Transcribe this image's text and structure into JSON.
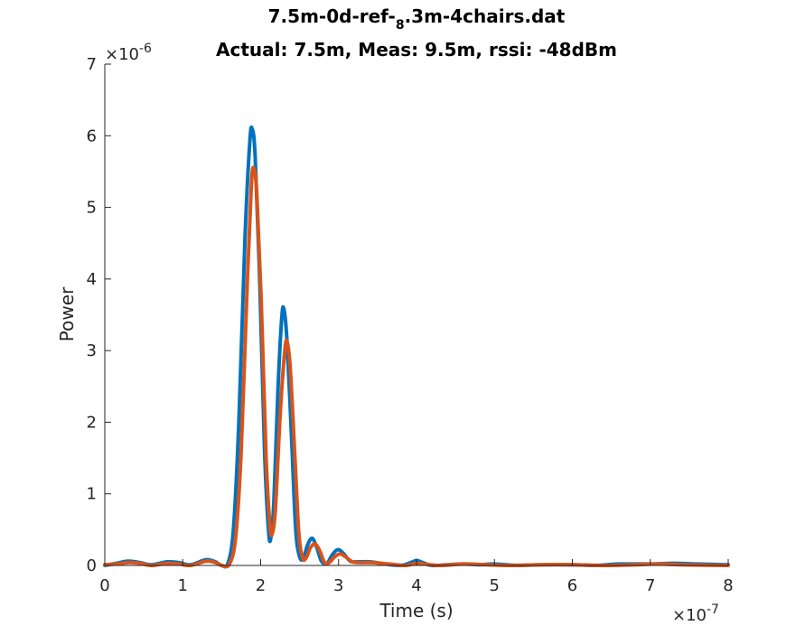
{
  "chart_data": {
    "type": "line",
    "title_parts": [
      "7.5m-0d-ref-",
      "8",
      ".3m-4chairs.dat"
    ],
    "subtitle": "Actual: 7.5m, Meas: 9.5m, rssi: -48dBm",
    "xlabel": "Time (s)",
    "ylabel": "Power",
    "x_exponent_label": "×10",
    "x_exponent": "-7",
    "y_exponent_label": "×10",
    "y_exponent": "-6",
    "xlim": [
      0,
      8
    ],
    "ylim": [
      0,
      7
    ],
    "x_ticks": [
      "0",
      "1",
      "2",
      "3",
      "4",
      "5",
      "6",
      "7",
      "8"
    ],
    "y_ticks": [
      "0",
      "1",
      "2",
      "3",
      "4",
      "5",
      "6",
      "7"
    ],
    "grid": false,
    "series": [
      {
        "color": "#0072BD",
        "points": [
          [
            0,
            0.0
          ],
          [
            0.15,
            0.03
          ],
          [
            0.3,
            0.06
          ],
          [
            0.45,
            0.04
          ],
          [
            0.6,
            0.01
          ],
          [
            0.8,
            0.05
          ],
          [
            0.95,
            0.04
          ],
          [
            1.1,
            0.01
          ],
          [
            1.3,
            0.08
          ],
          [
            1.42,
            0.05
          ],
          [
            1.5,
            0.0
          ],
          [
            1.58,
            0.03
          ],
          [
            1.65,
            0.5
          ],
          [
            1.72,
            2.0
          ],
          [
            1.8,
            4.6
          ],
          [
            1.86,
            5.9
          ],
          [
            1.89,
            6.1
          ],
          [
            1.93,
            5.7
          ],
          [
            1.99,
            3.9
          ],
          [
            2.05,
            1.6
          ],
          [
            2.1,
            0.5
          ],
          [
            2.13,
            0.38
          ],
          [
            2.17,
            0.9
          ],
          [
            2.22,
            2.4
          ],
          [
            2.27,
            3.45
          ],
          [
            2.3,
            3.57
          ],
          [
            2.34,
            3.1
          ],
          [
            2.4,
            1.7
          ],
          [
            2.45,
            0.5
          ],
          [
            2.5,
            0.12
          ],
          [
            2.55,
            0.1
          ],
          [
            2.6,
            0.28
          ],
          [
            2.66,
            0.38
          ],
          [
            2.72,
            0.25
          ],
          [
            2.78,
            0.06
          ],
          [
            2.85,
            0.03
          ],
          [
            2.92,
            0.15
          ],
          [
            2.99,
            0.22
          ],
          [
            3.06,
            0.17
          ],
          [
            3.15,
            0.06
          ],
          [
            3.25,
            0.05
          ],
          [
            3.4,
            0.05
          ],
          [
            3.6,
            0.02
          ],
          [
            3.8,
            0.0
          ],
          [
            3.95,
            0.05
          ],
          [
            4.0,
            0.07
          ],
          [
            4.08,
            0.04
          ],
          [
            4.2,
            0.0
          ],
          [
            4.4,
            0.01
          ],
          [
            4.6,
            0.02
          ],
          [
            4.8,
            0.01
          ],
          [
            5.0,
            0.02
          ],
          [
            5.3,
            0.0
          ],
          [
            5.6,
            0.01
          ],
          [
            6.0,
            0.01
          ],
          [
            6.3,
            0.0
          ],
          [
            6.6,
            0.02
          ],
          [
            7.0,
            0.02
          ],
          [
            7.3,
            0.03
          ],
          [
            7.6,
            0.02
          ],
          [
            8.0,
            0.01
          ]
        ]
      },
      {
        "color": "#D95319",
        "points": [
          [
            0,
            0.01
          ],
          [
            0.15,
            0.02
          ],
          [
            0.3,
            0.04
          ],
          [
            0.45,
            0.03
          ],
          [
            0.6,
            0.0
          ],
          [
            0.8,
            0.03
          ],
          [
            0.95,
            0.02
          ],
          [
            1.1,
            0.0
          ],
          [
            1.3,
            0.06
          ],
          [
            1.42,
            0.04
          ],
          [
            1.5,
            0.0
          ],
          [
            1.6,
            0.02
          ],
          [
            1.68,
            0.4
          ],
          [
            1.75,
            1.6
          ],
          [
            1.83,
            4.0
          ],
          [
            1.88,
            5.3
          ],
          [
            1.91,
            5.55
          ],
          [
            1.95,
            5.2
          ],
          [
            2.01,
            3.6
          ],
          [
            2.07,
            1.5
          ],
          [
            2.12,
            0.55
          ],
          [
            2.15,
            0.45
          ],
          [
            2.19,
            0.8
          ],
          [
            2.25,
            2.1
          ],
          [
            2.31,
            3.0
          ],
          [
            2.34,
            3.12
          ],
          [
            2.38,
            2.75
          ],
          [
            2.44,
            1.5
          ],
          [
            2.49,
            0.45
          ],
          [
            2.54,
            0.1
          ],
          [
            2.59,
            0.12
          ],
          [
            2.64,
            0.25
          ],
          [
            2.7,
            0.3
          ],
          [
            2.76,
            0.2
          ],
          [
            2.82,
            0.04
          ],
          [
            2.88,
            0.04
          ],
          [
            2.95,
            0.12
          ],
          [
            3.02,
            0.16
          ],
          [
            3.09,
            0.12
          ],
          [
            3.18,
            0.05
          ],
          [
            3.3,
            0.04
          ],
          [
            3.45,
            0.04
          ],
          [
            3.65,
            0.02
          ],
          [
            3.85,
            0.0
          ],
          [
            4.0,
            0.03
          ],
          [
            4.1,
            0.02
          ],
          [
            4.3,
            0.0
          ],
          [
            4.6,
            0.02
          ],
          [
            4.9,
            0.01
          ],
          [
            5.2,
            0.0
          ],
          [
            5.6,
            0.01
          ],
          [
            6.0,
            0.01
          ],
          [
            6.4,
            0.0
          ],
          [
            6.8,
            0.01
          ],
          [
            7.1,
            0.02
          ],
          [
            7.4,
            0.01
          ],
          [
            8.0,
            0.0
          ]
        ]
      }
    ]
  }
}
